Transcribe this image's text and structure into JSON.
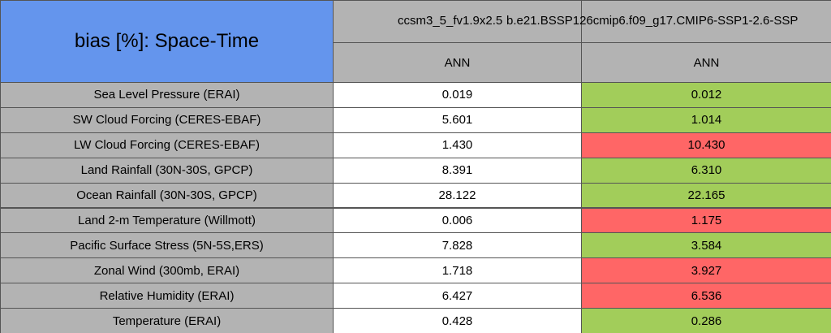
{
  "header": {
    "title": "bias [%]: Space-Time",
    "title_color": "#6495ed",
    "header_color": "#b3b3b3",
    "columns": [
      {
        "case": "ccsm3_5_fv1.9x2.5",
        "period": "ANN"
      },
      {
        "case": "b.e21.BSSP126cmip6.f09_g17.CMIP6-SSP1-2.6-SSP",
        "period": "ANN"
      }
    ]
  },
  "table": {
    "label_color": "#b3b3b3",
    "rows": [
      {
        "label": "Sea Level Pressure (ERAI)",
        "values": [
          "0.019",
          "0.012"
        ],
        "colors": [
          "#ffffff",
          "#a2cd5a"
        ]
      },
      {
        "label": "SW Cloud Forcing (CERES-EBAF)",
        "values": [
          "5.601",
          "1.014"
        ],
        "colors": [
          "#ffffff",
          "#a2cd5a"
        ]
      },
      {
        "label": "LW Cloud Forcing (CERES-EBAF)",
        "values": [
          "1.430",
          "10.430"
        ],
        "colors": [
          "#ffffff",
          "#ff6666"
        ]
      },
      {
        "label": "Land Rainfall (30N-30S, GPCP)",
        "values": [
          "8.391",
          "6.310"
        ],
        "colors": [
          "#ffffff",
          "#a2cd5a"
        ]
      },
      {
        "label": "Ocean Rainfall (30N-30S, GPCP)",
        "values": [
          "28.122",
          "22.165"
        ],
        "colors": [
          "#ffffff",
          "#a2cd5a"
        ]
      },
      {
        "label": "Land 2-m Temperature (Willmott)",
        "values": [
          "0.006",
          "1.175"
        ],
        "colors": [
          "#ffffff",
          "#ff6666"
        ]
      },
      {
        "label": "Pacific Surface Stress (5N-5S,ERS)",
        "values": [
          "7.828",
          "3.584"
        ],
        "colors": [
          "#ffffff",
          "#a2cd5a"
        ]
      },
      {
        "label": "Zonal Wind (300mb, ERAI)",
        "values": [
          "1.718",
          "3.927"
        ],
        "colors": [
          "#ffffff",
          "#ff6666"
        ]
      },
      {
        "label": "Relative Humidity (ERAI)",
        "values": [
          "6.427",
          "6.536"
        ],
        "colors": [
          "#ffffff",
          "#ff6666"
        ]
      },
      {
        "label": "Temperature (ERAI)",
        "values": [
          "0.428",
          "0.286"
        ],
        "colors": [
          "#ffffff",
          "#a2cd5a"
        ]
      }
    ]
  }
}
